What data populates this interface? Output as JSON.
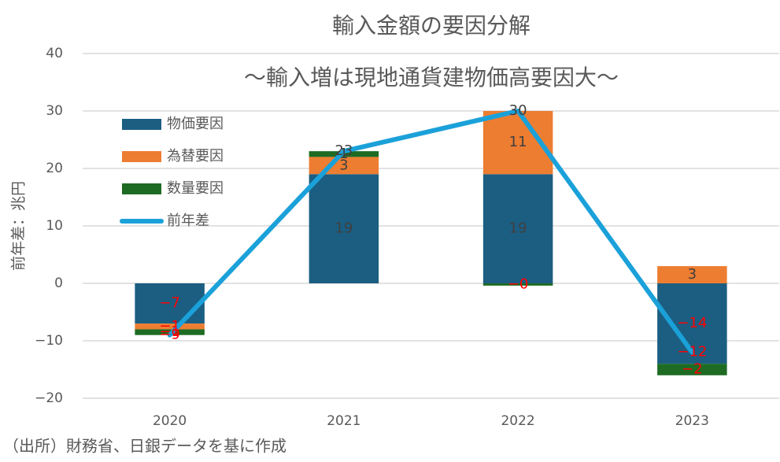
{
  "chart_data": {
    "type": "stacked-bar-line",
    "title": "輸入金額の要因分解",
    "subtitle": "～輸入増は現地通貨建物価高要因大～",
    "y_label": "前年差：兆円",
    "source": "（出所）財務省、日銀データを基に作成",
    "categories": [
      "2020",
      "2021",
      "2022",
      "2023"
    ],
    "series": [
      {
        "name": "物価要因",
        "kind": "bar",
        "color": "#1b5e82",
        "values": [
          -7,
          19,
          19,
          -14
        ],
        "value_labels": [
          "−7",
          "19",
          "19",
          "−14"
        ]
      },
      {
        "name": "為替要因",
        "kind": "bar",
        "color": "#ed7d31",
        "values": [
          -1,
          3,
          11,
          3
        ],
        "value_labels": [
          "−1",
          "3",
          "11",
          "3"
        ]
      },
      {
        "name": "数量要因",
        "kind": "bar",
        "color": "#1e6b24",
        "values": [
          -1,
          1,
          -0.4,
          -2
        ],
        "value_labels": [
          "−1",
          "1",
          "−0",
          "−2"
        ]
      },
      {
        "name": "前年差",
        "kind": "line",
        "color": "#1ba1d9",
        "values": [
          -9,
          23,
          30,
          -12
        ],
        "value_labels": [
          "−9",
          "23",
          "30",
          "−12"
        ]
      }
    ],
    "ylim": [
      -20,
      40
    ],
    "yticks": [
      {
        "value": -20,
        "label": "−20"
      },
      {
        "value": -10,
        "label": "−10"
      },
      0,
      10,
      20,
      30,
      40
    ],
    "grid": true,
    "legend": "top-left"
  }
}
